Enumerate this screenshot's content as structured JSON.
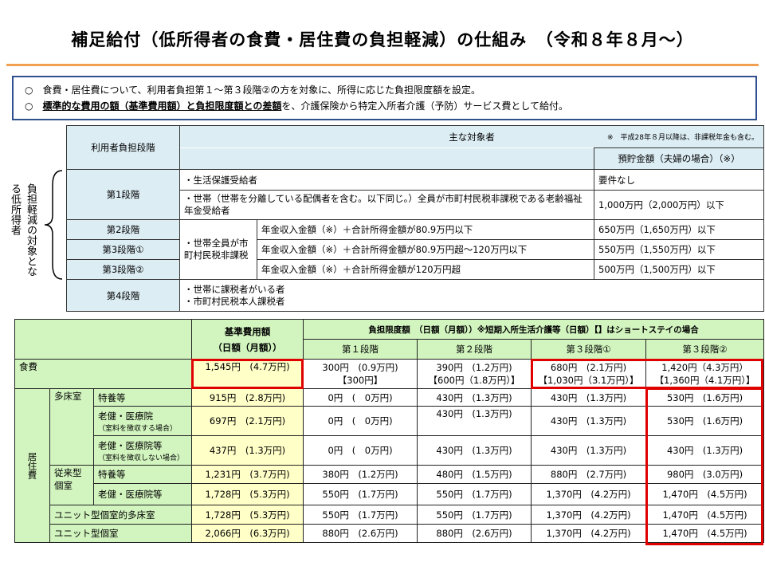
{
  "title": "補足給付（低所得者の食費・居住費の負担軽減）の仕組み　（令和８年８月～）",
  "info": {
    "line1": "食費・居住費について、利用者負担第１～第３段階②の方を対象に、所得に応じた負担限度額を設定。",
    "line2_bold": "標準的な費用の額（基準費用額）と負担限度額との差額",
    "line2_rest": "を、介護保険から特定入所者介護（予防）サービス費として給付。",
    "bullet": "○"
  },
  "side_label": "負担軽減の対象となる低所得者",
  "upper": {
    "h_stage": "利用者負担段階",
    "h_target": "主な対象者",
    "h_note": "※　平成28年８月以降は、非課税年金も含む。",
    "h_savings": "預貯金額（夫婦の場合）（※）",
    "rows": [
      {
        "stage": "第1段階",
        "target": "・生活保護受給者",
        "savings": "要件なし"
      },
      {
        "target": "・世帯（世帯を分離している配偶者を含む。以下同じ。）全員が市町村民税非課税である老齢福祉年金受給者",
        "savings": "1,000万円（2,000万円）以下"
      },
      {
        "stage": "第2段階",
        "target": "年金収入金額（※）＋合計所得金額が80.9万円以下",
        "savings": "650万円（1,650万円）以下"
      },
      {
        "stage": "第3段階①",
        "target": "年金収入金額（※）＋合計所得金額が80.9万円超～120万円以下",
        "savings": "550万円（1,550万円）以下"
      },
      {
        "stage": "第3段階②",
        "target": "年金収入金額（※）＋合計所得金額が120万円超",
        "savings": "500万円（1,500万円）以下"
      },
      {
        "stage": "第4段階",
        "target1": "・世帯に課税者がいる者",
        "target2": "・市町村民税本人課税者"
      }
    ],
    "nontax_group": "・世帯全員が市町村民税非課税"
  },
  "lower": {
    "h_base1": "基準費用額",
    "h_base2": "（日額（月額））",
    "h_limit": "負担限度額　（日額（月額））※短期入所生活介護等（日額）【】はショートステイの場合",
    "stages": [
      "第１段階",
      "第２段階",
      "第３段階①",
      "第３段階②"
    ],
    "food": {
      "label": "食費",
      "base": "1,545円　(4.7万円)",
      "s1": "300円　(0.9万円)",
      "s1b": "【300円】",
      "s2": "390円　(1.2万円)",
      "s2b": "【600円（1.8万円）】",
      "s3": "680円　(2.1万円)",
      "s3b": "【1,030円（3.1万円）】",
      "s4": "1,420円（4.3万円）",
      "s4b": "【1,360円（4.1万円）】"
    },
    "residence_label": "居住費",
    "groups": {
      "multi": "多床室",
      "conv": "従来型個室"
    },
    "rows": [
      {
        "label": "特養等",
        "base": "915円　(2.8万円)",
        "v": [
          "0円　(　0万円)",
          "430円　(1.3万円)",
          "430円　(1.3万円)",
          "530円　(1.6万円)"
        ]
      },
      {
        "label": "老健・医療院",
        "sub": "（室料を徴収する場合）",
        "base": "697円　(2.1万円)",
        "v": [
          "0円　(　0万円)",
          "430円　(1.3万円)",
          "430円　(1.3万円)",
          "530円　(1.6万円)"
        ]
      },
      {
        "label": "老健・医療院等",
        "sub": "（室料を徴収しない場合）",
        "base": "437円　(1.3万円)",
        "v": [
          "0円　(　0万円)",
          "430円　(1.3万円)",
          "430円　(1.3万円)",
          "430円　(1.3万円)"
        ]
      },
      {
        "label": "特養等",
        "base": "1,231円　(3.7万円)",
        "v": [
          "380円　(1.2万円)",
          "480円　(1.5万円)",
          "880円　(2.7万円)",
          "980円　(3.0万円)"
        ]
      },
      {
        "label": "老健・医療院等",
        "base": "1,728円　(5.3万円)",
        "v": [
          "550円　(1.7万円)",
          "550円　(1.7万円)",
          "1,370円　(4.2万円)",
          "1,470円　(4.5万円)"
        ]
      },
      {
        "label": "ユニット型個室的多床室",
        "base": "1,728円　(5.3万円)",
        "v": [
          "550円　(1.7万円)",
          "550円　(1.7万円)",
          "1,370円　(4.2万円)",
          "1,470円　(4.5万円)"
        ]
      },
      {
        "label": "ユニット型個室",
        "base": "2,066円　(6.3万円)",
        "v": [
          "880円　(2.6万円)",
          "880円　(2.6万円)",
          "1,370円　(4.2万円)",
          "1,470円　(4.5万円)"
        ]
      }
    ]
  },
  "colors": {
    "accent_line": "#f0a050",
    "highlight": "#e00000",
    "header_blue": "#dcedf4",
    "header_green": "#d2f5bf",
    "base_yellow": "#ffffc8"
  }
}
